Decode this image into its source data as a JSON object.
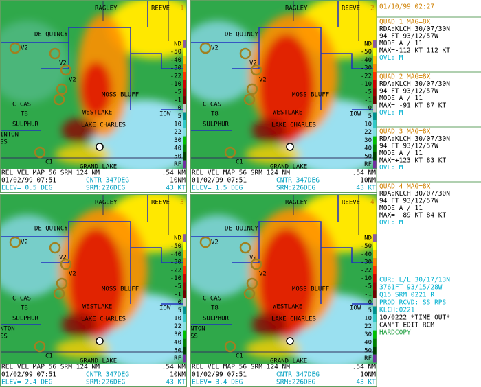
{
  "quads": [
    {
      "number": "1",
      "elev": "ELEV=  0.5 DEG",
      "edge_labels": [
        "INTON",
        "SS"
      ]
    },
    {
      "number": "2",
      "elev": "ELEV=  1.5 DEG",
      "edge_labels": []
    },
    {
      "number": "3",
      "elev": "ELEV=  2.4 DEG",
      "edge_labels": [
        "NTON",
        "SS"
      ]
    },
    {
      "number": "4",
      "elev": "ELEV=  3.4 DEG",
      "edge_labels": [
        "NTON",
        "SS"
      ]
    }
  ],
  "map_labels": {
    "ragley": "RAGLEY",
    "reeve": "REEVE",
    "de_quincy": "DE QUINCY",
    "v2_a": "V2",
    "v2_b": "V2",
    "v2_c": "V2",
    "moss_bluff": "MOSS BLUFF",
    "calcas": "C CAS",
    "t8": "T8",
    "westlake": "WESTLAKE",
    "iowa": "IOW",
    "sulphur": "SULPHUR",
    "lake_charles": "LAKE CHARLES",
    "c1": "C1",
    "grand_lake": "GRAND LAKE"
  },
  "scale": [
    "ND",
    "-50",
    "-40",
    "-30",
    "-22",
    "-10",
    "-5",
    "-1",
    "0",
    "5",
    "10",
    "22",
    "30",
    "40",
    "50",
    "RF"
  ],
  "footer": {
    "product": "REL VEL MAP 56 SRM 124 NM",
    "res": ".54 NM",
    "datetime": "01/02/99 07:51",
    "center": "CNTR 347DEG",
    "range": "10NM",
    "srm_dir": "SRM:226DEG",
    "srm_speed": "43 KT"
  },
  "side": {
    "clock": "01/10/99 02:27",
    "quad_info": [
      {
        "head": "QUAD 1     MAG=8X",
        "lines": [
          "RDA:KLCH  30/07/30N",
          "   94 FT   93/12/57W",
          "MODE A /     11",
          "MAX=-112 KT  112 KT"
        ],
        "ovl": "OVL: M"
      },
      {
        "head": "QUAD 2     MAG=8X",
        "lines": [
          "RDA:KLCH  30/07/30N",
          "   94 FT   93/12/57W",
          "MODE A /     11",
          "MAX= -91 KT   87 KT"
        ],
        "ovl": "OVL: M"
      },
      {
        "head": "QUAD 3     MAG=8X",
        "lines": [
          "RDA:KLCH  30/07/30N",
          "   94 FT   93/12/57W",
          "MODE A /     11",
          "MAX=+123 KT   83 KT"
        ],
        "ovl": "OVL: M"
      },
      {
        "head": "QUAD 4     MAG=8X",
        "lines": [
          "RDA:KLCH  30/07/30N",
          "   94 FT   93/12/57W",
          "MODE A /     11",
          "MAX= -89 KT   84 KT"
        ],
        "ovl": "OVL: M"
      }
    ],
    "status_cyan": [
      "CUR: L/L 30/17/13N",
      "  3761FT 93/15/28W",
      "Q15 SRM 0221     R",
      "PROD RCVD: SS  RPS",
      "KLCH:0221"
    ],
    "status_black": [
      "10/0222 *TIME OUT*",
      "CAN'T EDIT RCM"
    ],
    "hardcopy": "HARDCOPY"
  }
}
